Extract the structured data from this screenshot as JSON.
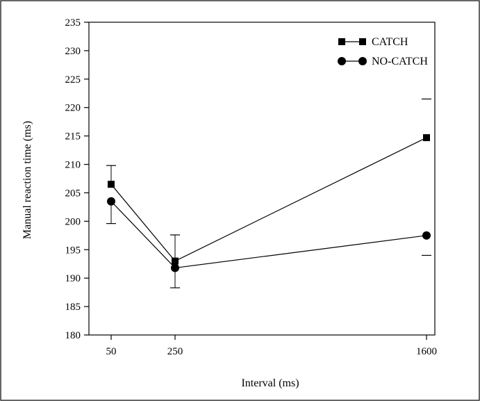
{
  "chart_data": {
    "type": "line",
    "title": "",
    "xlabel": "Interval (ms)",
    "ylabel": "Manual reaction time (ms)",
    "x_categories": [
      "50",
      "250",
      "1600"
    ],
    "x": [
      50,
      250,
      1600
    ],
    "ylim": [
      180,
      235
    ],
    "yticks": [
      "180",
      "185",
      "190",
      "195",
      "200",
      "205",
      "210",
      "215",
      "220",
      "225",
      "230",
      "235"
    ],
    "grid": false,
    "legend_position": "top-right",
    "series": [
      {
        "name": "CATCH",
        "marker": "square",
        "values": [
          206.5,
          193,
          214.7
        ],
        "error_upper": [
          209.8,
          197.6,
          221.5
        ]
      },
      {
        "name": "NO-CATCH",
        "marker": "circle",
        "values": [
          203.5,
          191.8,
          197.5
        ],
        "error_lower": [
          199.6,
          188.3,
          194
        ]
      }
    ]
  }
}
